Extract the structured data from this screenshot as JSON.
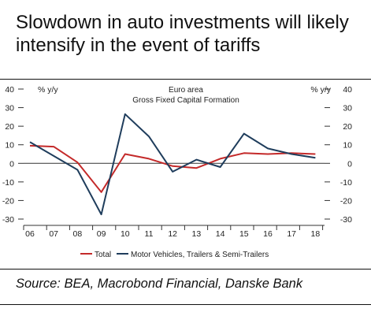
{
  "title": "Slowdown in auto investments will likely intensify in the event of tariffs",
  "source": "Source: BEA, Macrobond Financial, Danske Bank",
  "chart_data": {
    "type": "line",
    "title_lines": [
      "Euro area",
      "Gross Fixed Capital Formation"
    ],
    "y_unit_left": "% y/y",
    "y_unit_right": "% y/y",
    "ylim": [
      -30,
      40
    ],
    "yticks": [
      40,
      30,
      20,
      10,
      0,
      -10,
      -20,
      -30
    ],
    "categories": [
      "06",
      "07",
      "08",
      "09",
      "10",
      "11",
      "12",
      "13",
      "14",
      "15",
      "16",
      "17",
      "18"
    ],
    "x": [
      2006,
      2007,
      2008,
      2009,
      2010,
      2011,
      2012,
      2013,
      2014,
      2015,
      2016,
      2017,
      2018
    ],
    "series": [
      {
        "name": "Total",
        "color": "#c42a2a",
        "values": [
          9.5,
          9.0,
          0.5,
          -15.5,
          5.0,
          2.5,
          -1.5,
          -2.5,
          2.5,
          5.5,
          5.0,
          5.5,
          5.0
        ]
      },
      {
        "name": "Motor Vehicles, Trailers & Semi-Trailers",
        "color": "#1f3d5c",
        "values": [
          11.5,
          4.0,
          -3.5,
          -27.5,
          26.5,
          14.5,
          -4.5,
          2.0,
          -2.0,
          16.0,
          8.0,
          5.0,
          3.0
        ]
      }
    ],
    "grid": false,
    "legend_position": "bottom"
  }
}
